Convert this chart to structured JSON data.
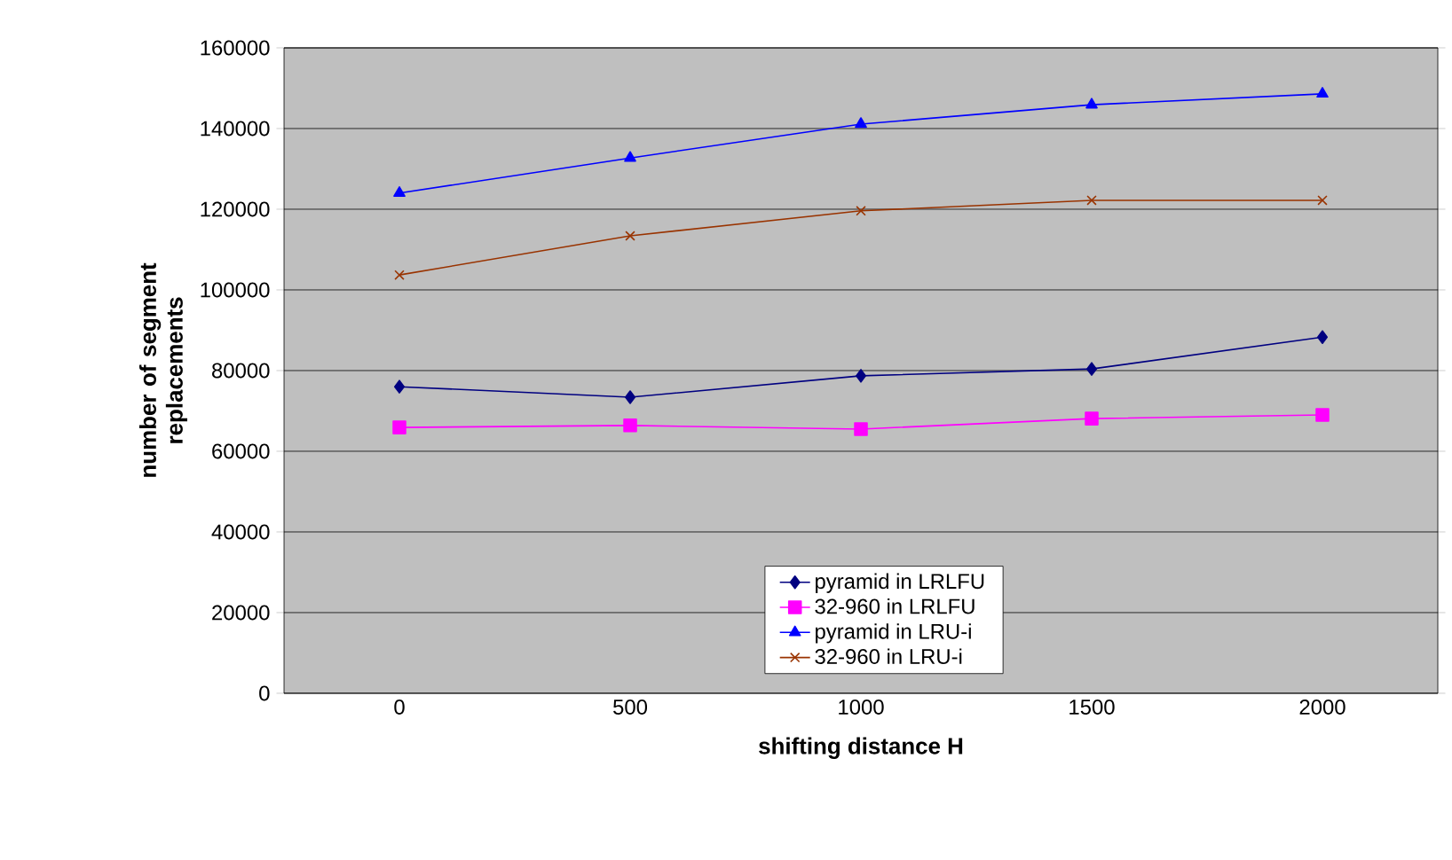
{
  "chart_data": {
    "type": "line",
    "xlabel": "shifting distance H",
    "ylabel": "number of segment replacements",
    "categories": [
      "0",
      "500",
      "1000",
      "1500",
      "2000"
    ],
    "ylim": [
      0,
      160000
    ],
    "yticks": [
      0,
      20000,
      40000,
      60000,
      80000,
      100000,
      120000,
      140000,
      160000
    ],
    "grid": "y",
    "legend": "bottom",
    "line_style": "solid",
    "series": [
      {
        "name": "pyramid in LRLFU",
        "color": "#000080",
        "marker": "diamond",
        "values": [
          76000,
          73400,
          78700,
          80400,
          88300
        ]
      },
      {
        "name": "32-960 in LRLFU",
        "color": "#ff00ff",
        "marker": "square",
        "values": [
          65900,
          66400,
          65500,
          68100,
          69000
        ]
      },
      {
        "name": "pyramid in LRU-i",
        "color": "#0000ff",
        "marker": "triangle",
        "values": [
          124000,
          132700,
          141100,
          145900,
          148600
        ]
      },
      {
        "name": "32-960 in LRU-i",
        "color": "#993300",
        "marker": "cross",
        "values": [
          103700,
          113400,
          119600,
          122200,
          122200
        ]
      }
    ]
  }
}
